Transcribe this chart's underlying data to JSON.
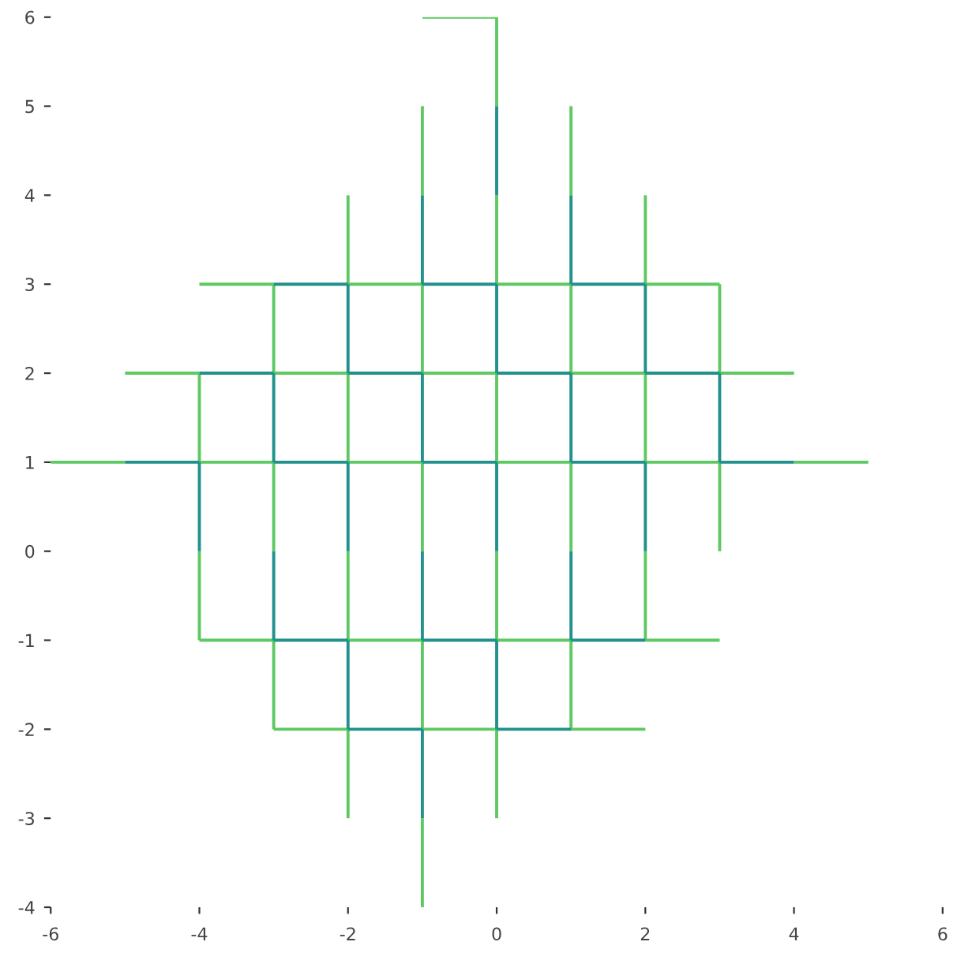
{
  "chart_data": {
    "type": "line",
    "line_style": "solid",
    "marker": "none",
    "grid": false,
    "xlim": [
      -6,
      6
    ],
    "xticks": [
      -6,
      -4,
      -2,
      0,
      2,
      4,
      6
    ],
    "ylim": [
      -4,
      6
    ],
    "yticks": [
      -4,
      -3,
      -2,
      -1,
      0,
      1,
      2,
      3,
      4,
      5,
      6
    ],
    "series": [
      {
        "color": "#5ec962",
        "x": [
          -1,
          0
        ],
        "values": [
          6,
          6
        ]
      },
      {
        "color": "#5ec962",
        "x": [
          -4,
          -3
        ],
        "values": [
          3,
          3
        ]
      },
      {
        "color": "#5ec962",
        "x": [
          -2,
          -1
        ],
        "values": [
          3,
          3
        ]
      },
      {
        "color": "#5ec962",
        "x": [
          0,
          1
        ],
        "values": [
          3,
          3
        ]
      },
      {
        "color": "#5ec962",
        "x": [
          2,
          3
        ],
        "values": [
          3,
          3
        ]
      },
      {
        "color": "#5ec962",
        "x": [
          -5,
          -4
        ],
        "values": [
          2,
          2
        ]
      },
      {
        "color": "#5ec962",
        "x": [
          -3,
          -2
        ],
        "values": [
          2,
          2
        ]
      },
      {
        "color": "#5ec962",
        "x": [
          -1,
          0
        ],
        "values": [
          2,
          2
        ]
      },
      {
        "color": "#5ec962",
        "x": [
          1,
          2
        ],
        "values": [
          2,
          2
        ]
      },
      {
        "color": "#5ec962",
        "x": [
          3,
          4
        ],
        "values": [
          2,
          2
        ]
      },
      {
        "color": "#5ec962",
        "x": [
          -6,
          -5
        ],
        "values": [
          1,
          1
        ]
      },
      {
        "color": "#5ec962",
        "x": [
          -4,
          -3
        ],
        "values": [
          1,
          1
        ]
      },
      {
        "color": "#5ec962",
        "x": [
          -2,
          -1
        ],
        "values": [
          1,
          1
        ]
      },
      {
        "color": "#5ec962",
        "x": [
          0,
          1
        ],
        "values": [
          1,
          1
        ]
      },
      {
        "color": "#5ec962",
        "x": [
          2,
          3
        ],
        "values": [
          1,
          1
        ]
      },
      {
        "color": "#5ec962",
        "x": [
          4,
          5
        ],
        "values": [
          1,
          1
        ]
      },
      {
        "color": "#5ec962",
        "x": [
          -4,
          -3
        ],
        "values": [
          -1,
          -1
        ]
      },
      {
        "color": "#5ec962",
        "x": [
          -2,
          -1
        ],
        "values": [
          -1,
          -1
        ]
      },
      {
        "color": "#5ec962",
        "x": [
          0,
          1
        ],
        "values": [
          -1,
          -1
        ]
      },
      {
        "color": "#5ec962",
        "x": [
          2,
          3
        ],
        "values": [
          -1,
          -1
        ]
      },
      {
        "color": "#5ec962",
        "x": [
          -3,
          -2
        ],
        "values": [
          -2,
          -2
        ]
      },
      {
        "color": "#5ec962",
        "x": [
          -1,
          0
        ],
        "values": [
          -2,
          -2
        ]
      },
      {
        "color": "#5ec962",
        "x": [
          1,
          2
        ],
        "values": [
          -2,
          -2
        ]
      },
      {
        "color": "#5ec962",
        "x": [
          -4,
          -4
        ],
        "values": [
          -1,
          0
        ]
      },
      {
        "color": "#5ec962",
        "x": [
          -4,
          -4
        ],
        "values": [
          1,
          2
        ]
      },
      {
        "color": "#5ec962",
        "x": [
          -3,
          -3
        ],
        "values": [
          -2,
          -1
        ]
      },
      {
        "color": "#5ec962",
        "x": [
          -3,
          -3
        ],
        "values": [
          0,
          1
        ]
      },
      {
        "color": "#5ec962",
        "x": [
          -3,
          -3
        ],
        "values": [
          2,
          3
        ]
      },
      {
        "color": "#5ec962",
        "x": [
          -2,
          -2
        ],
        "values": [
          -3,
          -2
        ]
      },
      {
        "color": "#5ec962",
        "x": [
          -2,
          -2
        ],
        "values": [
          -1,
          0
        ]
      },
      {
        "color": "#5ec962",
        "x": [
          -2,
          -2
        ],
        "values": [
          1,
          2
        ]
      },
      {
        "color": "#5ec962",
        "x": [
          -2,
          -2
        ],
        "values": [
          3,
          4
        ]
      },
      {
        "color": "#5ec962",
        "x": [
          -1,
          -1
        ],
        "values": [
          -4,
          -3
        ]
      },
      {
        "color": "#5ec962",
        "x": [
          -1,
          -1
        ],
        "values": [
          -2,
          -1
        ]
      },
      {
        "color": "#5ec962",
        "x": [
          -1,
          -1
        ],
        "values": [
          0,
          1
        ]
      },
      {
        "color": "#5ec962",
        "x": [
          -1,
          -1
        ],
        "values": [
          2,
          3
        ]
      },
      {
        "color": "#5ec962",
        "x": [
          -1,
          -1
        ],
        "values": [
          4,
          5
        ]
      },
      {
        "color": "#5ec962",
        "x": [
          0,
          0
        ],
        "values": [
          -3,
          -2
        ]
      },
      {
        "color": "#5ec962",
        "x": [
          0,
          0
        ],
        "values": [
          -1,
          0
        ]
      },
      {
        "color": "#5ec962",
        "x": [
          0,
          0
        ],
        "values": [
          1,
          2
        ]
      },
      {
        "color": "#5ec962",
        "x": [
          0,
          0
        ],
        "values": [
          3,
          4
        ]
      },
      {
        "color": "#5ec962",
        "x": [
          0,
          0
        ],
        "values": [
          5,
          6
        ]
      },
      {
        "color": "#5ec962",
        "x": [
          1,
          1
        ],
        "values": [
          -2,
          -1
        ]
      },
      {
        "color": "#5ec962",
        "x": [
          1,
          1
        ],
        "values": [
          0,
          1
        ]
      },
      {
        "color": "#5ec962",
        "x": [
          1,
          1
        ],
        "values": [
          2,
          3
        ]
      },
      {
        "color": "#5ec962",
        "x": [
          1,
          1
        ],
        "values": [
          4,
          5
        ]
      },
      {
        "color": "#5ec962",
        "x": [
          2,
          2
        ],
        "values": [
          -1,
          0
        ]
      },
      {
        "color": "#5ec962",
        "x": [
          2,
          2
        ],
        "values": [
          1,
          2
        ]
      },
      {
        "color": "#5ec962",
        "x": [
          2,
          2
        ],
        "values": [
          3,
          4
        ]
      },
      {
        "color": "#5ec962",
        "x": [
          3,
          3
        ],
        "values": [
          0,
          1
        ]
      },
      {
        "color": "#5ec962",
        "x": [
          3,
          3
        ],
        "values": [
          2,
          3
        ]
      },
      {
        "color": "#21918c",
        "x": [
          -3,
          -2
        ],
        "values": [
          3,
          3
        ]
      },
      {
        "color": "#21918c",
        "x": [
          -1,
          0
        ],
        "values": [
          3,
          3
        ]
      },
      {
        "color": "#21918c",
        "x": [
          1,
          2
        ],
        "values": [
          3,
          3
        ]
      },
      {
        "color": "#21918c",
        "x": [
          -4,
          -3
        ],
        "values": [
          2,
          2
        ]
      },
      {
        "color": "#21918c",
        "x": [
          -2,
          -1
        ],
        "values": [
          2,
          2
        ]
      },
      {
        "color": "#21918c",
        "x": [
          0,
          1
        ],
        "values": [
          2,
          2
        ]
      },
      {
        "color": "#21918c",
        "x": [
          2,
          3
        ],
        "values": [
          2,
          2
        ]
      },
      {
        "color": "#21918c",
        "x": [
          -5,
          -4
        ],
        "values": [
          1,
          1
        ]
      },
      {
        "color": "#21918c",
        "x": [
          -3,
          -2
        ],
        "values": [
          1,
          1
        ]
      },
      {
        "color": "#21918c",
        "x": [
          -1,
          0
        ],
        "values": [
          1,
          1
        ]
      },
      {
        "color": "#21918c",
        "x": [
          1,
          2
        ],
        "values": [
          1,
          1
        ]
      },
      {
        "color": "#21918c",
        "x": [
          3,
          4
        ],
        "values": [
          1,
          1
        ]
      },
      {
        "color": "#21918c",
        "x": [
          -3,
          -2
        ],
        "values": [
          -1,
          -1
        ]
      },
      {
        "color": "#21918c",
        "x": [
          -1,
          0
        ],
        "values": [
          -1,
          -1
        ]
      },
      {
        "color": "#21918c",
        "x": [
          1,
          2
        ],
        "values": [
          -1,
          -1
        ]
      },
      {
        "color": "#21918c",
        "x": [
          -2,
          -1
        ],
        "values": [
          -2,
          -2
        ]
      },
      {
        "color": "#21918c",
        "x": [
          0,
          1
        ],
        "values": [
          -2,
          -2
        ]
      },
      {
        "color": "#21918c",
        "x": [
          -4,
          -4
        ],
        "values": [
          0,
          1
        ]
      },
      {
        "color": "#21918c",
        "x": [
          -3,
          -3
        ],
        "values": [
          -1,
          0
        ]
      },
      {
        "color": "#21918c",
        "x": [
          -3,
          -3
        ],
        "values": [
          1,
          2
        ]
      },
      {
        "color": "#21918c",
        "x": [
          -2,
          -2
        ],
        "values": [
          -2,
          -1
        ]
      },
      {
        "color": "#21918c",
        "x": [
          -2,
          -2
        ],
        "values": [
          0,
          1
        ]
      },
      {
        "color": "#21918c",
        "x": [
          -2,
          -2
        ],
        "values": [
          2,
          3
        ]
      },
      {
        "color": "#21918c",
        "x": [
          -1,
          -1
        ],
        "values": [
          -3,
          -2
        ]
      },
      {
        "color": "#21918c",
        "x": [
          -1,
          -1
        ],
        "values": [
          -1,
          0
        ]
      },
      {
        "color": "#21918c",
        "x": [
          -1,
          -1
        ],
        "values": [
          1,
          2
        ]
      },
      {
        "color": "#21918c",
        "x": [
          -1,
          -1
        ],
        "values": [
          3,
          4
        ]
      },
      {
        "color": "#21918c",
        "x": [
          0,
          0
        ],
        "values": [
          -2,
          -1
        ]
      },
      {
        "color": "#21918c",
        "x": [
          0,
          0
        ],
        "values": [
          0,
          1
        ]
      },
      {
        "color": "#21918c",
        "x": [
          0,
          0
        ],
        "values": [
          2,
          3
        ]
      },
      {
        "color": "#21918c",
        "x": [
          0,
          0
        ],
        "values": [
          4,
          5
        ]
      },
      {
        "color": "#21918c",
        "x": [
          1,
          1
        ],
        "values": [
          -1,
          0
        ]
      },
      {
        "color": "#21918c",
        "x": [
          1,
          1
        ],
        "values": [
          1,
          2
        ]
      },
      {
        "color": "#21918c",
        "x": [
          1,
          1
        ],
        "values": [
          3,
          4
        ]
      },
      {
        "color": "#21918c",
        "x": [
          2,
          2
        ],
        "values": [
          0,
          1
        ]
      },
      {
        "color": "#21918c",
        "x": [
          2,
          2
        ],
        "values": [
          2,
          3
        ]
      },
      {
        "color": "#21918c",
        "x": [
          3,
          3
        ],
        "values": [
          1,
          2
        ]
      }
    ]
  }
}
